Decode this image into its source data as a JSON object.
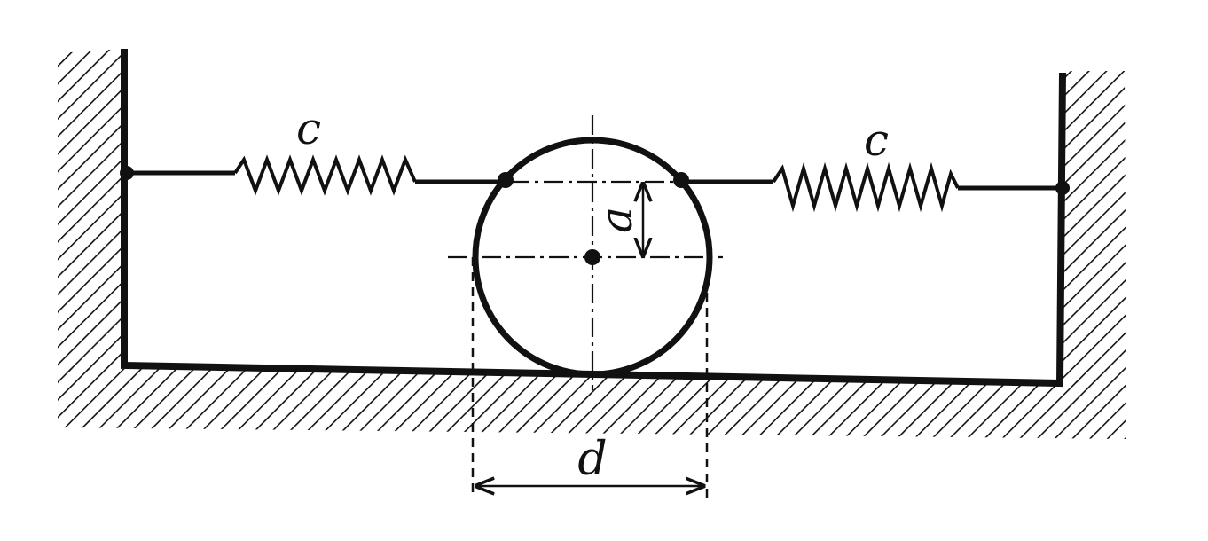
{
  "diagram": {
    "left_spring_label": "c",
    "right_spring_label": "c",
    "offset_label": "a",
    "diameter_label": "d"
  },
  "colors": {
    "ink": "#111111",
    "background": "#ffffff"
  }
}
